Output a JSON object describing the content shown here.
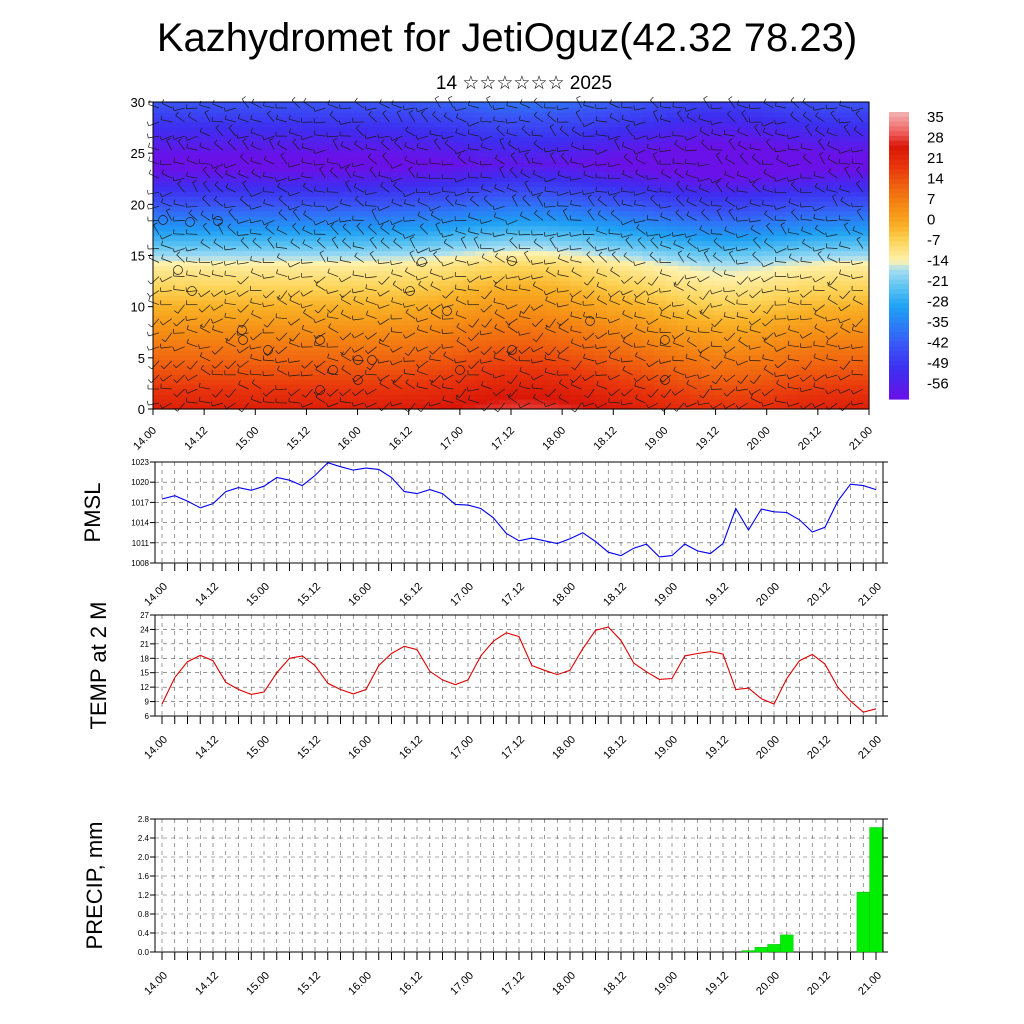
{
  "header": {
    "title": "Kazhydromet for JetiOguz(42.32 78.23)",
    "subtitle": "14 ☆☆☆☆☆☆ 2025"
  },
  "colors": {
    "pmsl_line": "#0000ee",
    "temp_line": "#dd0000",
    "precip_bar": "#00ee00",
    "colorscale": [
      "#6a11e8",
      "#3d2ef0",
      "#3a52f6",
      "#2c7bf7",
      "#1ea0f4",
      "#5cc3f2",
      "#a7def2",
      "#fff2b0",
      "#fdd55a",
      "#f9b126",
      "#f58a14",
      "#f0620f",
      "#e8340c",
      "#d91608",
      "#f06060",
      "#f3b6b6"
    ]
  },
  "x_tick_labels": [
    "14.00",
    "14.12",
    "15.00",
    "15.12",
    "16.00",
    "16.12",
    "17.00",
    "17.12",
    "18.00",
    "18.12",
    "19.00",
    "19.12",
    "20.00",
    "20.12",
    "21.00"
  ],
  "chart_data": [
    {
      "type": "heatmap",
      "name": "temperature-wind-cross-section",
      "ylim": [
        0,
        30
      ],
      "y_ticks": [
        0,
        5,
        10,
        15,
        20,
        25,
        30
      ],
      "colorbar_labels": [
        "35",
        "28",
        "21",
        "14",
        "7",
        "0",
        "-7",
        "-14",
        "-21",
        "-28",
        "-35",
        "-42",
        "-49",
        "-56"
      ],
      "colorbar_range": [
        -60,
        40
      ]
    },
    {
      "type": "line",
      "ylabel": "PMSL",
      "ylim": [
        1008,
        1023
      ],
      "y_ticks": [
        1008,
        1011,
        1014,
        1017,
        1020,
        1023
      ],
      "series": [
        {
          "values": [
            1017.5,
            1018.0,
            1017.2,
            1016.2,
            1016.8,
            1018.6,
            1019.2,
            1018.8,
            1019.4,
            1020.7,
            1020.3,
            1019.5,
            1021.0,
            1022.9,
            1022.3,
            1021.8,
            1022.1,
            1021.9,
            1020.7,
            1018.6,
            1018.3,
            1018.9,
            1018.3,
            1016.7,
            1016.6,
            1016.1,
            1014.7,
            1012.4,
            1011.3,
            1011.7,
            1011.3,
            1010.9,
            1011.6,
            1012.5,
            1011.2,
            1009.6,
            1009.1,
            1010.2,
            1010.8,
            1008.9,
            1009.1,
            1010.8,
            1009.8,
            1009.4,
            1010.9,
            1016.1,
            1012.9,
            1016.0,
            1015.6,
            1015.5,
            1014.4,
            1012.6,
            1013.3,
            1017.2,
            1019.7,
            1019.5,
            1018.9
          ]
        }
      ]
    },
    {
      "type": "line",
      "ylabel": "TEMP at 2 M",
      "ylim": [
        6,
        27
      ],
      "y_ticks": [
        6,
        9,
        12,
        15,
        18,
        21,
        24,
        27
      ],
      "series": [
        {
          "values": [
            8.5,
            14.0,
            17.3,
            18.6,
            17.5,
            13.0,
            11.5,
            10.5,
            11.0,
            15.0,
            18.0,
            18.5,
            16.5,
            12.8,
            11.5,
            10.6,
            11.5,
            16.5,
            19.0,
            20.5,
            19.8,
            15.3,
            13.5,
            12.5,
            13.5,
            18.5,
            21.6,
            23.3,
            22.5,
            16.5,
            15.5,
            14.6,
            15.5,
            20.0,
            23.8,
            24.5,
            21.7,
            17.0,
            15.2,
            13.6,
            13.8,
            18.5,
            19.0,
            19.4,
            18.9,
            11.5,
            11.8,
            9.6,
            8.5,
            13.8,
            17.5,
            18.8,
            16.8,
            12.0,
            9.1,
            6.8,
            7.5
          ]
        }
      ]
    },
    {
      "type": "bar",
      "ylabel": "PRECIP, mm",
      "ylim": [
        0,
        2.8
      ],
      "y_ticks": [
        "0.0",
        "0.4",
        "0.8",
        "1.2",
        "1.6",
        "2.0",
        "2.4",
        "2.8"
      ],
      "values": [
        0,
        0,
        0,
        0,
        0,
        0,
        0,
        0,
        0,
        0,
        0,
        0,
        0,
        0,
        0,
        0,
        0,
        0,
        0,
        0,
        0,
        0,
        0,
        0,
        0,
        0,
        0,
        0,
        0,
        0,
        0,
        0,
        0,
        0,
        0,
        0,
        0,
        0,
        0,
        0,
        0,
        0,
        0,
        0,
        0,
        0,
        0.03,
        0.1,
        0.16,
        0.36,
        0,
        0,
        0,
        0,
        0,
        1.26,
        2.62
      ]
    }
  ]
}
